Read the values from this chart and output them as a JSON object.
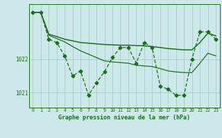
{
  "background_color": "#cce8e8",
  "grid_color": "#aacccc",
  "line_color": "#1a6e1a",
  "xlabel": "Graphe pression niveau de la mer (hPa)",
  "xlim": [
    -0.5,
    23.5
  ],
  "ylim": [
    1020.55,
    1023.65
  ],
  "yticks": [
    1021,
    1022
  ],
  "xticks": [
    0,
    1,
    2,
    3,
    4,
    5,
    6,
    7,
    8,
    9,
    10,
    11,
    12,
    13,
    14,
    15,
    16,
    17,
    18,
    19,
    20,
    21,
    22,
    23
  ],
  "series": [
    {
      "x": [
        0,
        1,
        2,
        3,
        4,
        5,
        6,
        7,
        8,
        9,
        10,
        11,
        12,
        13,
        14,
        15,
        16,
        17,
        18,
        19,
        20,
        21,
        22,
        23
      ],
      "y": [
        1023.4,
        1023.4,
        1022.6,
        1022.5,
        1022.1,
        1021.5,
        1021.65,
        1020.92,
        1021.3,
        1021.62,
        1022.05,
        1022.35,
        1022.35,
        1021.88,
        1022.5,
        1022.35,
        1021.2,
        1021.1,
        1020.92,
        1020.92,
        1022.0,
        1022.82,
        1022.82,
        1022.6
      ],
      "style": "dashed",
      "marker": "D",
      "markersize": 2.5,
      "linewidth": 0.9
    },
    {
      "x": [
        0,
        1,
        2,
        3,
        4,
        5,
        6,
        7,
        8,
        9,
        10,
        11,
        12,
        13,
        14,
        15,
        16,
        17,
        18,
        19,
        20,
        21,
        22,
        23
      ],
      "y": [
        1023.4,
        1023.4,
        1022.75,
        1022.68,
        1022.6,
        1022.55,
        1022.5,
        1022.48,
        1022.46,
        1022.44,
        1022.43,
        1022.42,
        1022.42,
        1022.41,
        1022.4,
        1022.38,
        1022.35,
        1022.32,
        1022.3,
        1022.28,
        1022.28,
        1022.5,
        1022.78,
        1022.7
      ],
      "style": "solid",
      "marker": null,
      "markersize": 0,
      "linewidth": 1.1
    },
    {
      "x": [
        0,
        1,
        2,
        3,
        4,
        5,
        6,
        7,
        8,
        9,
        10,
        11,
        12,
        13,
        14,
        15,
        16,
        17,
        18,
        19,
        20,
        21,
        22,
        23
      ],
      "y": [
        1023.4,
        1023.4,
        1022.72,
        1022.62,
        1022.52,
        1022.38,
        1022.25,
        1022.15,
        1022.05,
        1021.95,
        1021.92,
        1021.9,
        1021.88,
        1021.82,
        1021.8,
        1021.78,
        1021.72,
        1021.65,
        1021.62,
        1021.6,
        1021.6,
        1021.88,
        1022.18,
        1022.1
      ],
      "style": "solid",
      "marker": null,
      "markersize": 0,
      "linewidth": 0.9
    }
  ]
}
